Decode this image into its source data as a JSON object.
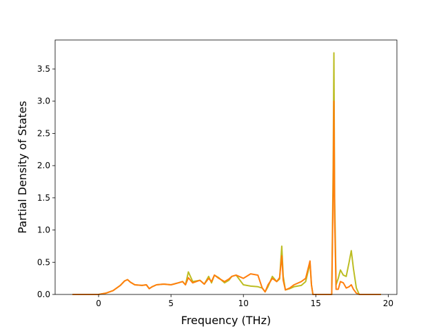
{
  "chart_data": {
    "type": "line",
    "title": "",
    "xlabel": "Frequency (THz)",
    "ylabel": "Partial Density of States",
    "xlim": [
      -3.0,
      20.6
    ],
    "ylim": [
      0.0,
      3.95
    ],
    "xticks": [
      0,
      5,
      10,
      15,
      20
    ],
    "xtick_labels": [
      "0",
      "5",
      "10",
      "15",
      "20"
    ],
    "yticks": [
      0.0,
      0.5,
      1.0,
      1.5,
      2.0,
      2.5,
      3.0,
      3.5
    ],
    "ytick_labels": [
      "0.0",
      "0.5",
      "1.0",
      "1.5",
      "2.0",
      "2.5",
      "3.0",
      "3.5"
    ],
    "grid": false,
    "legend": false,
    "series": [
      {
        "color": "#bcbd22",
        "x": [
          -1.8,
          0.0,
          0.5,
          1.0,
          1.5,
          1.8,
          2.0,
          2.2,
          2.5,
          3.0,
          3.3,
          3.5,
          3.7,
          4.0,
          4.5,
          5.0,
          5.5,
          5.8,
          6.0,
          6.2,
          6.5,
          7.0,
          7.3,
          7.6,
          7.8,
          8.0,
          8.3,
          8.7,
          9.0,
          9.2,
          9.5,
          10.0,
          10.5,
          11.0,
          11.3,
          11.5,
          11.7,
          12.0,
          12.3,
          12.5,
          12.65,
          12.75,
          12.9,
          13.2,
          13.5,
          14.0,
          14.3,
          14.6,
          14.7,
          14.8,
          15.5,
          16.1,
          16.2,
          16.25,
          16.3,
          16.4,
          16.55,
          16.7,
          16.9,
          17.1,
          17.3,
          17.45,
          17.6,
          17.8,
          18.0,
          18.5,
          19.5
        ],
        "values": [
          0.0,
          0.0,
          0.02,
          0.06,
          0.14,
          0.21,
          0.23,
          0.19,
          0.15,
          0.14,
          0.15,
          0.09,
          0.12,
          0.15,
          0.16,
          0.15,
          0.18,
          0.2,
          0.15,
          0.35,
          0.2,
          0.22,
          0.16,
          0.28,
          0.18,
          0.3,
          0.26,
          0.18,
          0.22,
          0.28,
          0.3,
          0.15,
          0.13,
          0.12,
          0.1,
          0.04,
          0.12,
          0.28,
          0.2,
          0.24,
          0.75,
          0.28,
          0.07,
          0.09,
          0.12,
          0.14,
          0.2,
          0.48,
          0.15,
          0.0,
          0.0,
          0.0,
          2.0,
          3.75,
          1.5,
          0.15,
          0.25,
          0.38,
          0.3,
          0.28,
          0.5,
          0.68,
          0.4,
          0.1,
          0.0,
          0.0,
          0.0
        ]
      },
      {
        "color": "#ff7f0e",
        "x": [
          -1.8,
          0.0,
          0.5,
          1.0,
          1.5,
          1.8,
          2.0,
          2.2,
          2.5,
          3.0,
          3.3,
          3.5,
          3.7,
          4.0,
          4.5,
          5.0,
          5.5,
          5.8,
          6.0,
          6.2,
          6.5,
          7.0,
          7.3,
          7.6,
          7.8,
          8.0,
          8.3,
          8.7,
          9.0,
          9.2,
          9.5,
          10.0,
          10.5,
          11.0,
          11.3,
          11.5,
          11.7,
          12.0,
          12.3,
          12.5,
          12.65,
          12.75,
          12.9,
          13.2,
          13.5,
          14.0,
          14.3,
          14.6,
          14.7,
          14.8,
          15.5,
          16.1,
          16.2,
          16.25,
          16.3,
          16.4,
          16.55,
          16.7,
          16.9,
          17.1,
          17.3,
          17.45,
          17.6,
          17.8,
          18.0,
          18.5,
          19.5
        ],
        "values": [
          0.0,
          0.0,
          0.02,
          0.06,
          0.14,
          0.21,
          0.23,
          0.19,
          0.15,
          0.14,
          0.15,
          0.09,
          0.12,
          0.15,
          0.16,
          0.15,
          0.18,
          0.2,
          0.15,
          0.26,
          0.18,
          0.22,
          0.16,
          0.25,
          0.2,
          0.3,
          0.25,
          0.2,
          0.24,
          0.28,
          0.3,
          0.25,
          0.32,
          0.3,
          0.1,
          0.04,
          0.15,
          0.25,
          0.2,
          0.26,
          0.6,
          0.22,
          0.07,
          0.1,
          0.15,
          0.2,
          0.25,
          0.52,
          0.15,
          0.0,
          0.0,
          0.0,
          1.6,
          3.0,
          1.2,
          0.08,
          0.08,
          0.2,
          0.18,
          0.1,
          0.12,
          0.15,
          0.08,
          0.02,
          0.0,
          0.0,
          0.0
        ]
      }
    ]
  }
}
